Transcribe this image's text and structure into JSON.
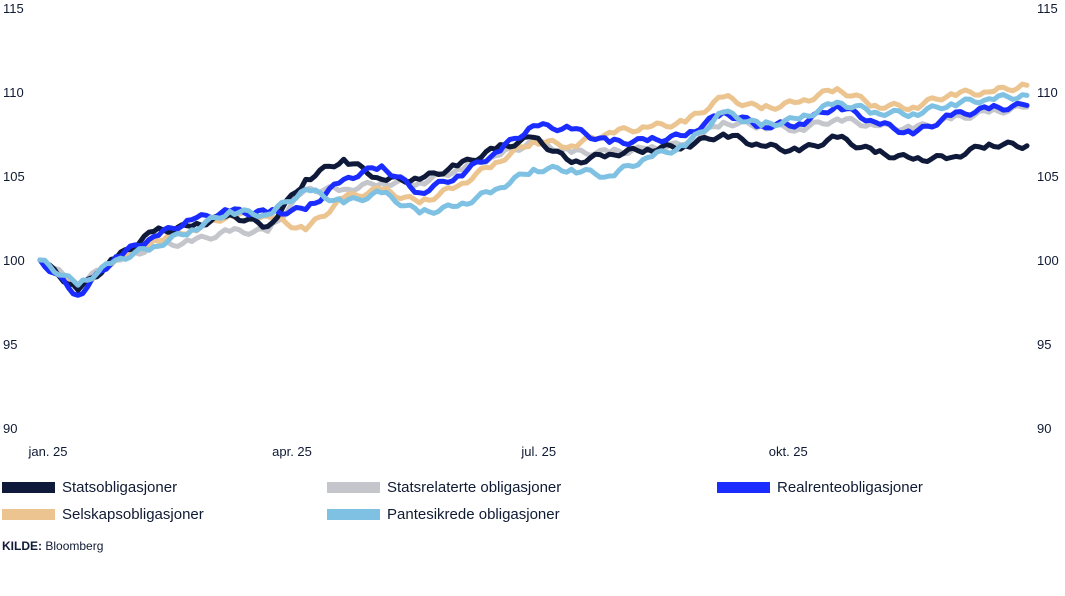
{
  "chart_data": {
    "type": "line",
    "title": "",
    "xlabel": "",
    "ylabel": "",
    "ylim": [
      90,
      115
    ],
    "yticks": [
      90,
      95,
      100,
      105,
      110,
      115
    ],
    "xlim": [
      "2025-01-01",
      "2025-12-31"
    ],
    "xticks": [
      {
        "date": "2025-01-01",
        "label": "jan. 25"
      },
      {
        "date": "2025-04-01",
        "label": "apr. 25"
      },
      {
        "date": "2025-07-01",
        "label": "jul. 25"
      },
      {
        "date": "2025-10-01",
        "label": "okt. 25"
      }
    ],
    "grid": false,
    "legend_position": "bottom",
    "x": [
      "2025-01-01",
      "2025-01-15",
      "2025-01-29",
      "2025-02-12",
      "2025-02-26",
      "2025-03-12",
      "2025-03-26",
      "2025-04-09",
      "2025-04-23",
      "2025-05-07",
      "2025-05-21",
      "2025-06-04",
      "2025-06-18",
      "2025-07-02",
      "2025-07-16",
      "2025-07-30",
      "2025-08-13",
      "2025-08-27",
      "2025-09-10",
      "2025-09-24",
      "2025-10-08",
      "2025-10-22",
      "2025-11-05",
      "2025-11-19",
      "2025-12-03",
      "2025-12-17",
      "2025-12-31"
    ],
    "series": [
      {
        "name": "Statsrelaterte obligasjoner",
        "color": "#c4c6cb",
        "values": [
          100,
          98.5,
          100.0,
          100.8,
          101.1,
          101.7,
          101.7,
          104.2,
          104.2,
          104.6,
          104.6,
          105.4,
          106.2,
          107.0,
          106.4,
          106.4,
          106.6,
          106.9,
          108.2,
          108.0,
          107.8,
          108.4,
          108.0,
          107.8,
          108.4,
          108.8,
          109.1
        ]
      },
      {
        "name": "Selskapsobligasjoner",
        "color": "#ecc48f",
        "values": [
          100,
          98.4,
          100.0,
          101.2,
          101.8,
          102.7,
          102.6,
          101.8,
          103.7,
          104.2,
          103.4,
          104.4,
          105.8,
          107.1,
          106.8,
          107.6,
          107.9,
          108.2,
          109.7,
          109.0,
          109.4,
          110.2,
          109.2,
          109.1,
          109.9,
          110.0,
          110.4
        ]
      },
      {
        "name": "Statsobligasjoner",
        "color": "#0f1a3a",
        "values": [
          100,
          98.2,
          100.1,
          101.7,
          102.0,
          102.7,
          102.0,
          104.8,
          106.0,
          104.8,
          104.8,
          105.6,
          106.6,
          107.3,
          105.8,
          106.3,
          106.6,
          106.8,
          107.5,
          106.8,
          106.5,
          107.3,
          106.4,
          106.0,
          106.1,
          106.9,
          106.8
        ]
      },
      {
        "name": "Realrenteobligasjoner",
        "color": "#1a2cff",
        "values": [
          100,
          97.9,
          100.2,
          101.4,
          102.4,
          102.9,
          102.8,
          103.0,
          104.8,
          105.6,
          104.0,
          105.0,
          106.4,
          108.0,
          107.8,
          107.0,
          107.1,
          107.4,
          108.8,
          108.0,
          108.1,
          109.2,
          108.2,
          107.5,
          108.6,
          109.0,
          109.2
        ]
      },
      {
        "name": "Pantesikrede obligasjoner",
        "color": "#7fc1e3",
        "values": [
          100,
          98.5,
          100.0,
          100.8,
          101.8,
          102.9,
          102.7,
          104.2,
          103.4,
          104.0,
          102.8,
          103.2,
          104.2,
          105.4,
          105.4,
          105.0,
          106.1,
          106.8,
          108.8,
          108.0,
          108.4,
          109.4,
          108.8,
          108.7,
          109.3,
          109.6,
          109.8
        ]
      }
    ],
    "legend_order": [
      "Statsobligasjoner",
      "Statsrelaterte obligasjoner",
      "Realrenteobligasjoner",
      "Selskapsobligasjoner",
      "Pantesikrede obligasjoner"
    ]
  },
  "source": {
    "label": "KILDE:",
    "value": "Bloomberg"
  }
}
